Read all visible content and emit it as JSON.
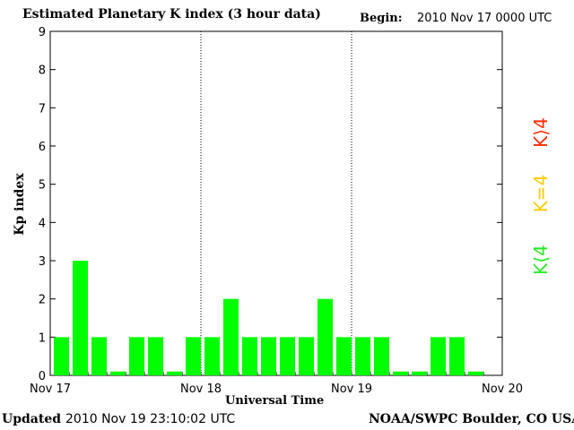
{
  "header": {
    "title": "Estimated Planetary K index (3 hour data)",
    "begin_label": "Begin:",
    "begin_value": "2010 Nov 17 0000 UTC"
  },
  "footer": {
    "updated_label": "Updated",
    "updated_value": "2010 Nov 19 23:10:02 UTC",
    "credit": "NOAA/SWPC Boulder, CO USA"
  },
  "legend": {
    "high": {
      "label": "K⟩4",
      "color": "#ff2a00"
    },
    "equal": {
      "label": "K=4",
      "color": "#ffcc00"
    },
    "low": {
      "label": "K⟨4",
      "color": "#22ee22"
    }
  },
  "chart_data": {
    "type": "bar",
    "xlabel": "Universal Time",
    "ylabel": "Kp index",
    "ylim": [
      0,
      9
    ],
    "yticks": [
      0,
      1,
      2,
      3,
      4,
      5,
      6,
      7,
      8,
      9
    ],
    "xtick_labels": [
      "Nov 17",
      "Nov 18",
      "Nov 19",
      "Nov 20"
    ],
    "bar_color": "#00ff00",
    "values": [
      1,
      3,
      1,
      0.1,
      1,
      1,
      0.1,
      1,
      1,
      2,
      1,
      1,
      1,
      1,
      2,
      1,
      1,
      1,
      0.1,
      0.1,
      1,
      1,
      0.1,
      null
    ],
    "grid": "dotted day separators"
  }
}
